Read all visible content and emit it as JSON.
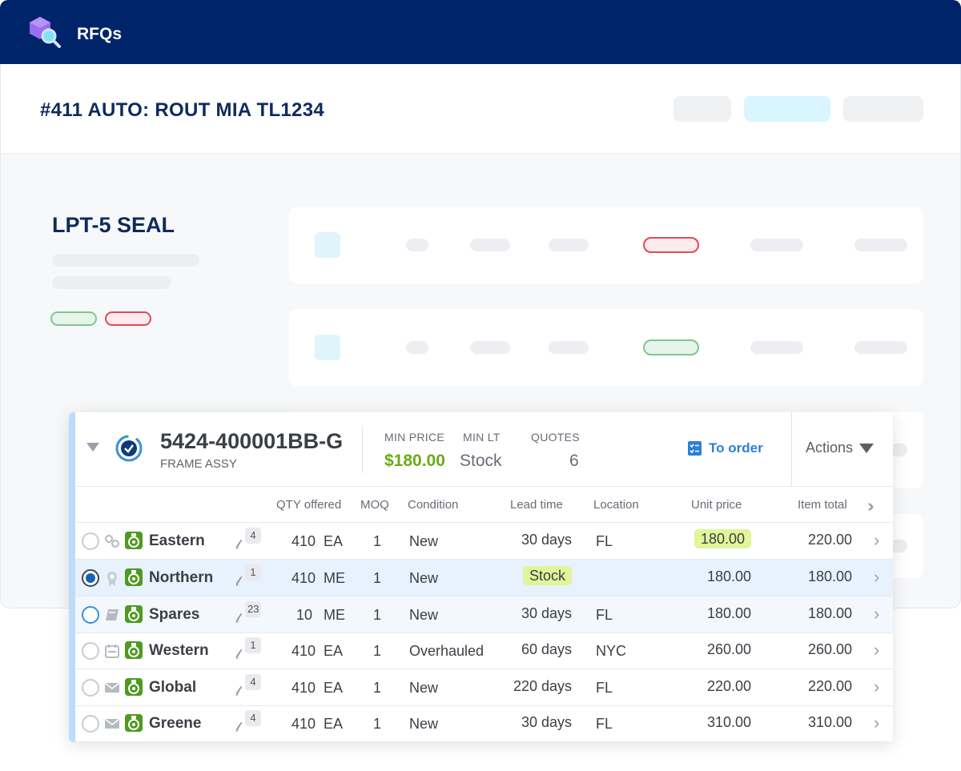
{
  "app": {
    "title": "RFQs"
  },
  "rfq": {
    "title": "#411 AUTO: ROUT MIA TL1234"
  },
  "part": {
    "title": "LPT-5 SEAL"
  },
  "item": {
    "part_number": "5424-400001BB-G",
    "description": "FRAME ASSY",
    "min_price_label": "MIN PRICE",
    "min_price": "$180.00",
    "min_lt_label": "MIN LT",
    "min_lt": "Stock",
    "quotes_label": "QUOTES",
    "quotes": "6",
    "to_order_label": "To order",
    "actions_label": "Actions"
  },
  "columns": {
    "qty": "QTY offered",
    "moq": "MOQ",
    "condition": "Condition",
    "lead_time": "Lead time",
    "location": "Location",
    "unit_price": "Unit price",
    "item_total": "Item total"
  },
  "rows": [
    {
      "vendor": "Eastern",
      "attachments": "4",
      "qty": "410",
      "uom": "EA",
      "moq": "1",
      "condition": "New",
      "lead_time": "30 days",
      "location": "FL",
      "unit_price": "180.00",
      "item_total": "220.00",
      "icon": "link-icon"
    },
    {
      "vendor": "Northern",
      "attachments": "1",
      "qty": "410",
      "uom": "ME",
      "moq": "1",
      "condition": "New",
      "lead_time": "Stock",
      "location": "",
      "unit_price": "180.00",
      "item_total": "180.00",
      "icon": "award-icon"
    },
    {
      "vendor": "Spares",
      "attachments": "23",
      "qty": "10",
      "uom": "ME",
      "moq": "1",
      "condition": "New",
      "lead_time": "30 days",
      "location": "FL",
      "unit_price": "180.00",
      "item_total": "180.00",
      "icon": "book-icon"
    },
    {
      "vendor": "Western",
      "attachments": "1",
      "qty": "410",
      "uom": "EA",
      "moq": "1",
      "condition": "Overhauled",
      "lead_time": "60 days",
      "location": "NYC",
      "unit_price": "260.00",
      "item_total": "260.00",
      "icon": "calendar-icon"
    },
    {
      "vendor": "Global",
      "attachments": "4",
      "qty": "410",
      "uom": "EA",
      "moq": "1",
      "condition": "New",
      "lead_time": "220 days",
      "location": "FL",
      "unit_price": "220.00",
      "item_total": "220.00",
      "icon": "mail-icon"
    },
    {
      "vendor": "Greene",
      "attachments": "4",
      "qty": "410",
      "uom": "EA",
      "moq": "1",
      "condition": "New",
      "lead_time": "30 days",
      "location": "FL",
      "unit_price": "310.00",
      "item_total": "310.00",
      "icon": "mail-icon"
    }
  ],
  "colors": {
    "nav": "#002469",
    "accent": "#2d7fd5",
    "price": "#6aab15",
    "highlight": "#e1f59a",
    "selected_row": "#e7f2fe"
  }
}
